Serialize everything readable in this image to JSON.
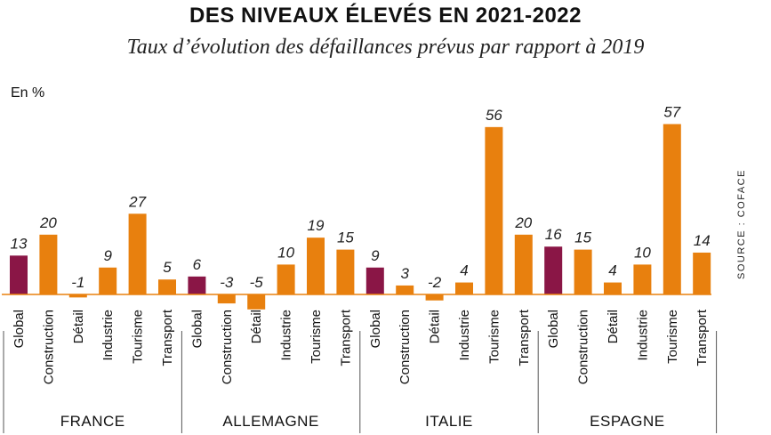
{
  "chart_data": {
    "type": "bar",
    "title": "DES NIVEAUX ÉLEVÉS EN 2021-2022",
    "subtitle": "Taux d’évolution des défaillances prévus par rapport à 2019",
    "unit_label": "En %",
    "source": "SOURCE : COFACE",
    "groups": [
      {
        "name": "FRANCE",
        "categories": [
          "Global",
          "Construction",
          "Détail",
          "Industrie",
          "Tourisme",
          "Transport"
        ],
        "values": [
          13,
          20,
          -1,
          9,
          27,
          5
        ]
      },
      {
        "name": "ALLEMAGNE",
        "categories": [
          "Global",
          "Construction",
          "Détail",
          "Industrie",
          "Tourisme",
          "Transport"
        ],
        "values": [
          6,
          -3,
          -5,
          10,
          19,
          15
        ]
      },
      {
        "name": "ITALIE",
        "categories": [
          "Global",
          "Construction",
          "Détail",
          "Industrie",
          "Tourisme",
          "Transport"
        ],
        "values": [
          9,
          3,
          -2,
          4,
          56,
          20
        ]
      },
      {
        "name": "ESPAGNE",
        "categories": [
          "Global",
          "Construction",
          "Détail",
          "Industrie",
          "Tourisme",
          "Transport"
        ],
        "values": [
          16,
          15,
          4,
          10,
          57,
          14
        ]
      }
    ],
    "colors": {
      "global": "#8a1646",
      "sector": "#e8800e",
      "baseline": "#e8800e",
      "divider": "#555555"
    },
    "legend": "none",
    "grid": false
  }
}
